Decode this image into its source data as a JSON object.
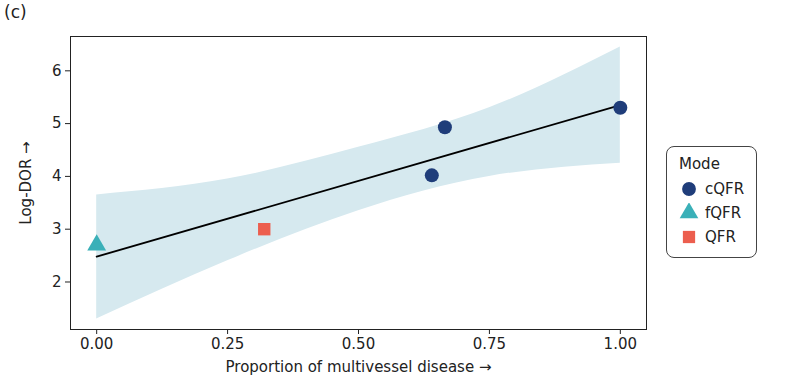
{
  "chart_data": {
    "type": "scatter",
    "title": "(c)",
    "x_label": "Proportion of multivessel disease",
    "y_label": "Log-DOR",
    "legend_title": "Mode",
    "legend": "right",
    "grid": false,
    "xlim": [
      -0.05,
      1.05
    ],
    "ylim": [
      1.1,
      6.65
    ],
    "xticks": [
      {
        "value": 0,
        "label": "0.00"
      },
      {
        "value": 0.25,
        "label": "0.25"
      },
      {
        "value": 0.5,
        "label": "0.50"
      },
      {
        "value": 0.75,
        "label": "0.75"
      },
      {
        "value": 1,
        "label": "1.00"
      }
    ],
    "yticks": [
      2,
      3,
      4,
      5,
      6
    ],
    "series": [
      {
        "name": "cQFR",
        "color": "#1f3d7a",
        "marker": "circle",
        "x": [
          0.64,
          0.665,
          1.0
        ],
        "values": [
          4.02,
          4.93,
          5.3
        ]
      },
      {
        "name": "fQFR",
        "color": "#3ab0b8",
        "marker": "triangle",
        "x": [
          0.0
        ],
        "values": [
          2.7
        ]
      },
      {
        "name": "QFR",
        "color": "#ec5e4e",
        "marker": "square",
        "x": [
          0.32
        ],
        "values": [
          3.0
        ]
      }
    ],
    "fit": {
      "type": "line",
      "color": "#000000",
      "x": [
        0,
        1
      ],
      "values": [
        2.48,
        5.35
      ]
    },
    "band": {
      "type": "area",
      "color": "#d6e9ef",
      "x": [
        0,
        0.25,
        0.5,
        0.75,
        1
      ],
      "lower": [
        1.3,
        2.4,
        3.35,
        4.0,
        4.25
      ],
      "upper": [
        3.65,
        3.95,
        4.55,
        5.3,
        6.45
      ]
    }
  }
}
